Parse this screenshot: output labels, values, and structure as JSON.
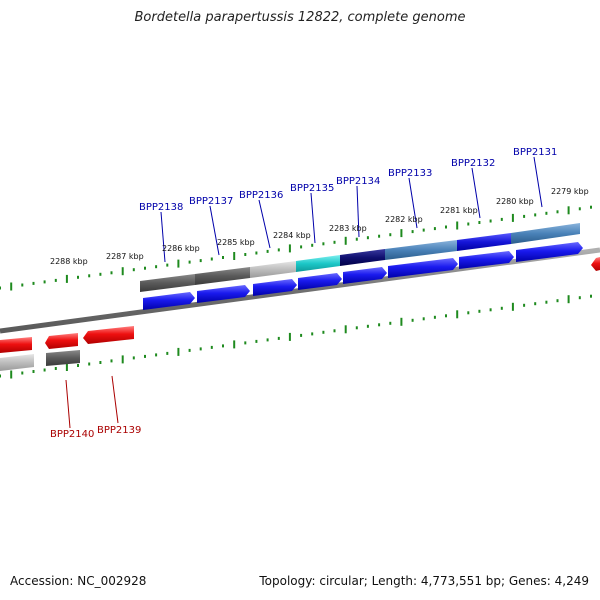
{
  "title": "Bordetella parapertussis 12822, complete genome",
  "footer": {
    "accession": "Accession: NC_002928",
    "summary": "Topology: circular; Length: 4,773,551 bp; Genes: 4,249"
  },
  "colors": {
    "forward_gene": "#1010e8",
    "reverse_gene": "#ee1010",
    "backbone": "#808080",
    "tick": "#1e8a1e",
    "forward_label": "#0000aa",
    "reverse_label": "#aa0000"
  },
  "scale_labels": [
    "2288 kbp",
    "2287 kbp",
    "2286 kbp",
    "2285 kbp",
    "2284 kbp",
    "2283 kbp",
    "2282 kbp",
    "2281 kbp",
    "2280 kbp",
    "2279 kbp"
  ],
  "forward_gene_labels": [
    "BPP2138",
    "BPP2137",
    "BPP2136",
    "BPP2135",
    "BPP2134",
    "BPP2133",
    "BPP2132",
    "BPP2131"
  ],
  "reverse_gene_labels": [
    "BPP2140",
    "BPP2139"
  ]
}
